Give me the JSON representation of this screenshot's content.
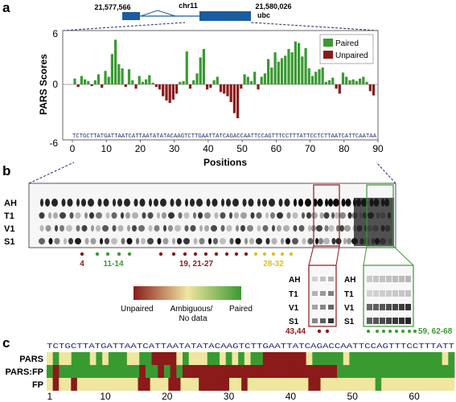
{
  "panel_labels": {
    "a": "a",
    "b": "b",
    "c": "c"
  },
  "gene_track": {
    "start": "21,577,566",
    "chrom": "chr11",
    "end": "21,580,026",
    "gene": "ubc"
  },
  "legend": {
    "paired": "Paired",
    "unpaired": "Unpaired"
  },
  "colors": {
    "paired": "#3a9a32",
    "unpaired": "#8b1a1a",
    "seq_text": "#1e2a6e"
  },
  "chart_data": {
    "type": "bar",
    "xlabel": "Positions",
    "ylabel": "PARS Scores",
    "xlim": [
      0,
      90
    ],
    "ylim": [
      -6,
      6
    ],
    "xticks": [
      "0",
      "10",
      "20",
      "30",
      "40",
      "50",
      "60",
      "70",
      "80",
      "90"
    ],
    "yticks": [
      "6",
      "0",
      "-6"
    ],
    "sequence": "TCTGCTTATGATTAATCATTAATATATACAAGTCTTGAATTATCAGACCAATTCCAGTTTCCTTTATTCCTCTTAATCATTCAATAA",
    "values": [
      0.7,
      -0.3,
      1.0,
      0.6,
      0.4,
      -0.2,
      0.5,
      1.2,
      -0.4,
      1.6,
      0.9,
      3.6,
      5.3,
      2.4,
      1.9,
      -0.3,
      1.8,
      0.5,
      -0.5,
      1.0,
      0.3,
      0.6,
      1.1,
      0.2,
      -0.3,
      -0.6,
      -1.4,
      -1.9,
      -2.2,
      -1.8,
      -1.1,
      0.3,
      0.4,
      3.9,
      -0.5,
      0.5,
      1.3,
      3.2,
      4.2,
      -0.6,
      -0.4,
      0.5,
      0.9,
      -0.9,
      -1.1,
      -1.4,
      -2.1,
      -3.4,
      -4.0,
      -0.5,
      1.2,
      0.9,
      0.4,
      1.5,
      -0.6,
      0.9,
      1.3,
      3.0,
      2.0,
      3.8,
      2.7,
      3.1,
      3.4,
      4.2,
      3.8,
      5.1,
      4.9,
      3.3,
      4.3,
      1.9,
      1.0,
      1.5,
      1.8,
      2.0,
      0.3,
      0.5,
      0.8,
      -0.5,
      -1.1,
      1.4,
      0.9,
      0.5,
      0.6,
      0.4,
      0.7,
      0.9,
      0.3,
      -0.8,
      -1.3
    ]
  },
  "gel": {
    "lanes": [
      "AH",
      "T1",
      "V1",
      "S1"
    ],
    "markers": [
      {
        "text": "4",
        "color": "#8b1a1a"
      },
      {
        "text": "11-14",
        "color": "#3a9a32"
      },
      {
        "text": "19, 21-27",
        "color": "#8b1a1a"
      },
      {
        "text": "28-32",
        "color": "#e0c020"
      },
      {
        "text": "43,44",
        "color": "#8b1a1a"
      },
      {
        "text": "59, 62-68",
        "color": "#3a9a32"
      }
    ],
    "colorbar": {
      "left": "Unpaired",
      "middle": "Ambiguous/\nNo data",
      "middle_line1": "Ambiguous/",
      "middle_line2": "No data",
      "right": "Paired"
    }
  },
  "panel_c": {
    "sequence": "TCTGCTTATGATTAATCATTAATATATACAAGTCTTGAATTATCAGACCAATTCCAGTTTCCTTTATT",
    "rows": [
      "PARS",
      "PARS:FP",
      "FP"
    ],
    "ticks": [
      "1",
      "10",
      "20",
      "30",
      "40",
      "50",
      "60"
    ],
    "states": {
      "PARS": "PGPPGGGPGPGGGPPGGUUUUPGPPPGGPGPGPGGUUUUUUUPGGGGGPGGGGGGGGGGGGGGGPG",
      "PARS:FP": "GUGGGGGGGGGGGGGUGGUGUGUUUUUUUUUUUUUUUUUUUUUUUUUGGGGGGGGGGGGGGGGGGG",
      "FP": "YUYYUYYYYYYYYYYUUYYYUUYYYUUUUUYYUYYYYYYYYYYUUYYYYYYYYYGYYYYYYYYYYYY"
    }
  }
}
